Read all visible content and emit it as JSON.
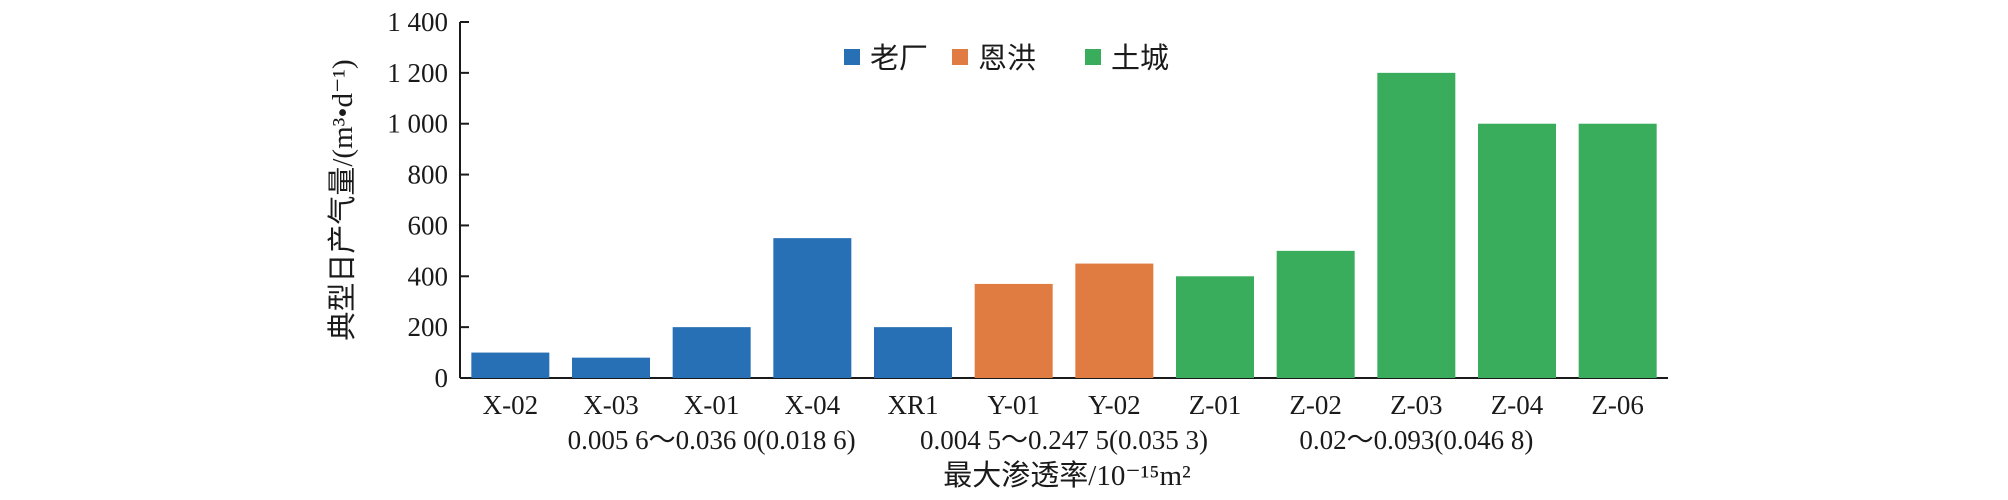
{
  "chart_data": {
    "type": "bar",
    "title": "",
    "ylabel": "典型日产气量/(m³•d⁻¹)",
    "xlabel": "最大渗透率/10⁻¹⁵m²",
    "ylim": [
      0,
      1400
    ],
    "yticks": [
      0,
      200,
      400,
      600,
      800,
      1000,
      1200,
      1400
    ],
    "ytick_labels": [
      "0",
      "200",
      "400",
      "600",
      "800",
      "1 000",
      "1 200",
      "1 400"
    ],
    "grid": false,
    "legend_position": "top-center",
    "categories": [
      "X-02",
      "X-03",
      "X-01",
      "X-04",
      "XR1",
      "Y-01",
      "Y-02",
      "Z-01",
      "Z-02",
      "Z-03",
      "Z-04",
      "Z-06"
    ],
    "values": [
      100,
      80,
      200,
      550,
      200,
      370,
      450,
      400,
      500,
      1200,
      1000,
      1000
    ],
    "bar_groups": [
      0,
      0,
      0,
      0,
      0,
      1,
      1,
      2,
      2,
      2,
      2,
      2
    ],
    "series": [
      {
        "name": "老厂",
        "color": "#2870b6"
      },
      {
        "name": "恩洪",
        "color": "#e07b42"
      },
      {
        "name": "土城",
        "color": "#3aad5c"
      }
    ],
    "group_range_labels": [
      {
        "text": "0.005 6～0.036 0(0.018 6)",
        "from": 0,
        "to": 4
      },
      {
        "text": "0.004 5～0.247 5(0.035 3)",
        "from": 4,
        "to": 7
      },
      {
        "text": "0.02～0.093(0.046 8)",
        "from": 7,
        "to": 11
      }
    ]
  }
}
